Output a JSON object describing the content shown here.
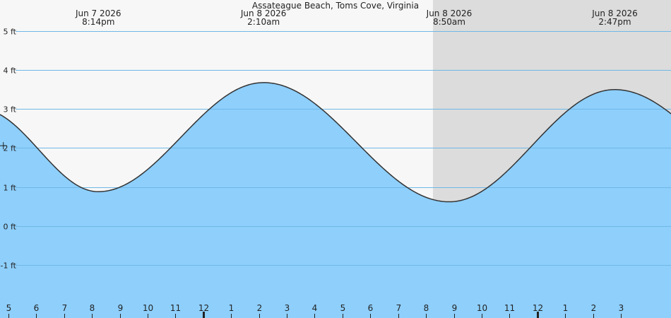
{
  "chart_data": {
    "type": "area",
    "title": "Assateague Beach, Toms Cove, Virginia",
    "xlabel": "",
    "ylabel": "",
    "unit": "ft",
    "ylim": [
      -2,
      5.8
    ],
    "xlim": [
      4.7,
      28.8
    ],
    "yticks": [
      {
        "value": 5,
        "label": "5 ft"
      },
      {
        "value": 4,
        "label": "4 ft"
      },
      {
        "value": 3,
        "label": "3 ft"
      },
      {
        "value": 2,
        "label": "2 ft"
      },
      {
        "value": 1,
        "label": "1 ft"
      },
      {
        "value": 0,
        "label": "0 ft"
      },
      {
        "value": -1,
        "label": "-1 ft"
      }
    ],
    "xticks": [
      {
        "x": 5,
        "label": "5"
      },
      {
        "x": 6,
        "label": "6"
      },
      {
        "x": 7,
        "label": "7"
      },
      {
        "x": 8,
        "label": "8"
      },
      {
        "x": 9,
        "label": "9"
      },
      {
        "x": 10,
        "label": "10"
      },
      {
        "x": 11,
        "label": "11"
      },
      {
        "x": 12,
        "label": "12"
      },
      {
        "x": 13,
        "label": "1"
      },
      {
        "x": 14,
        "label": "2"
      },
      {
        "x": 15,
        "label": "3"
      },
      {
        "x": 16,
        "label": "4"
      },
      {
        "x": 17,
        "label": "5"
      },
      {
        "x": 18,
        "label": "6"
      },
      {
        "x": 19,
        "label": "7"
      },
      {
        "x": 20,
        "label": "8"
      },
      {
        "x": 21,
        "label": "9"
      },
      {
        "x": 22,
        "label": "10"
      },
      {
        "x": 23,
        "label": "11"
      },
      {
        "x": 24,
        "label": "12"
      },
      {
        "x": 25,
        "label": "1"
      },
      {
        "x": 26,
        "label": "2"
      },
      {
        "x": 27,
        "label": "3"
      }
    ],
    "night": [
      20.25,
      29.5
    ],
    "tide_extrema": [
      {
        "x": 4.0,
        "y": 3.0
      },
      {
        "x": 8.23,
        "y": 0.88
      },
      {
        "x": 14.17,
        "y": 3.68
      },
      {
        "x": 20.83,
        "y": 0.62
      },
      {
        "x": 26.78,
        "y": 3.5
      },
      {
        "x": 33.0,
        "y": 0.9
      }
    ],
    "events": [
      {
        "x": 8.233,
        "date": "Jun  7 2026",
        "time": "8:14pm",
        "level_ft": 0.88
      },
      {
        "x": 14.167,
        "date": "Jun  8 2026",
        "time": "2:10am",
        "level_ft": 3.68
      },
      {
        "x": 20.833,
        "date": "Jun  8 2026",
        "time": "8:50am",
        "level_ft": 0.62
      },
      {
        "x": 26.783,
        "date": "Jun  8 2026",
        "time": "2:47pm",
        "level_ft": 3.5
      }
    ],
    "current_marker": {
      "x": 4.82,
      "y": 2.06
    },
    "colors": {
      "water": "#8ecffc",
      "water_stroke": "#333333",
      "night": "#dcdcdc",
      "day": "#f7f7f7",
      "grid": "#333333",
      "grid_under_water": "#6fb8e6"
    }
  }
}
